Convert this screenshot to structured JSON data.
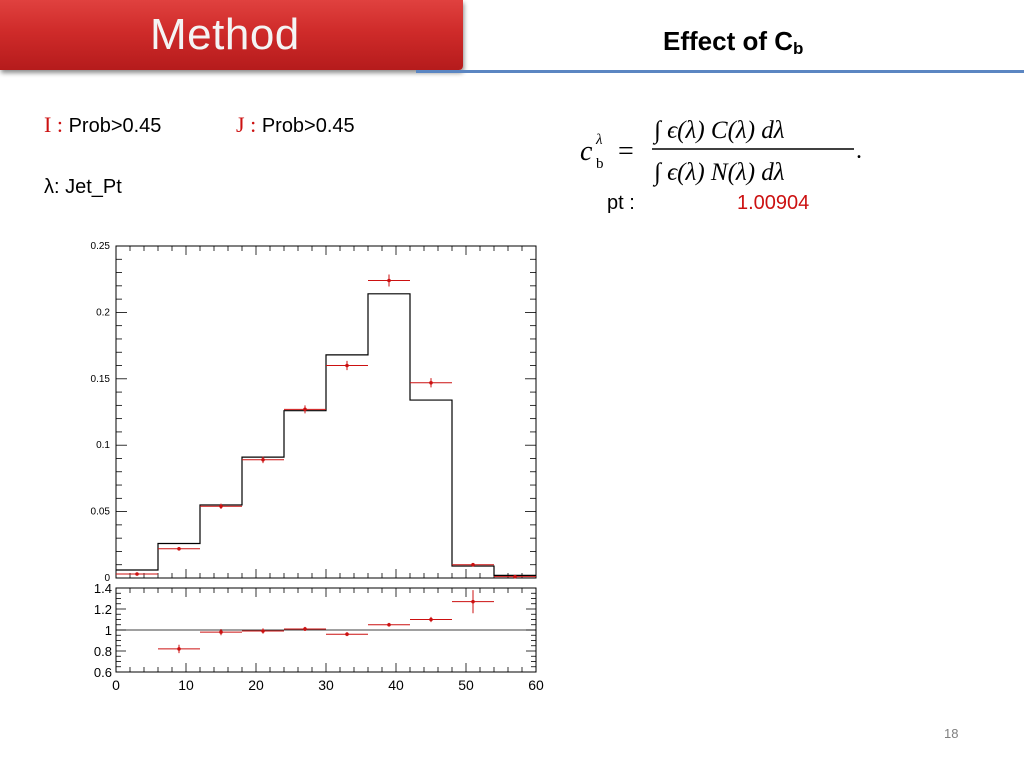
{
  "header": {
    "title": "Method",
    "subtitle_main": "Effect of C",
    "subtitle_sub": "b"
  },
  "conditions": {
    "i": {
      "symbol": "I",
      "colon": ":",
      "text": "Prob>0.45"
    },
    "j": {
      "symbol": "J",
      "colon": ":",
      "text": "Prob>0.45"
    },
    "lambda": "λ:   Jet_Pt"
  },
  "formula": {
    "lhs": "c",
    "lhs_sup": "λ",
    "lhs_sub": "b",
    "numerator": "∫ ϵ(λ) C(λ) dλ",
    "denominator": "∫ ϵ(λ) N(λ) dλ"
  },
  "result": {
    "label": "pt :",
    "value": "1.00904"
  },
  "page_number": "18",
  "colors": {
    "title_red": "#cf2b2a",
    "accent_blue": "#5b86c2",
    "marker_red": "#cc1111"
  },
  "chart_data": [
    {
      "type": "line",
      "style": "step-histogram-with-error-points",
      "bin_edges": [
        0,
        6,
        12,
        18,
        24,
        30,
        36,
        42,
        48,
        54,
        60
      ],
      "series": [
        {
          "values": [
            0.006,
            0.026,
            0.055,
            0.091,
            0.126,
            0.168,
            0.214,
            0.134,
            0.009,
            0.002
          ]
        },
        {
          "x": [
            3,
            9,
            15,
            21,
            27,
            33,
            39,
            45,
            51,
            57
          ],
          "values": [
            0.003,
            0.022,
            0.054,
            0.089,
            0.127,
            0.16,
            0.224,
            0.147,
            0.01,
            0.001
          ],
          "errors": [
            0.0008,
            0.0012,
            0.002,
            0.0025,
            0.003,
            0.0035,
            0.0045,
            0.0035,
            0.0008,
            0.0003
          ]
        }
      ],
      "xlim": [
        0,
        60
      ],
      "ylim": [
        0,
        0.25
      ],
      "yticks": [
        "0",
        "0.05",
        "0.1",
        "0.15",
        "0.2",
        "0.25"
      ],
      "grid": false
    },
    {
      "type": "scatter",
      "style": "ratio-with-errors",
      "x": [
        9,
        15,
        21,
        27,
        33,
        39,
        45,
        51
      ],
      "values": [
        0.82,
        0.98,
        0.99,
        1.01,
        0.96,
        1.05,
        1.1,
        1.27
      ],
      "errors": [
        0.04,
        0.03,
        0.025,
        0.02,
        0.018,
        0.018,
        0.025,
        0.11
      ],
      "reference": 1,
      "xlim": [
        0,
        60
      ],
      "ylim": [
        0.6,
        1.4
      ],
      "xticks": [
        "0",
        "10",
        "20",
        "30",
        "40",
        "50",
        "60"
      ],
      "yticks": [
        "0.6",
        "0.8",
        "1",
        "1.2",
        "1.4"
      ],
      "grid": false
    }
  ]
}
